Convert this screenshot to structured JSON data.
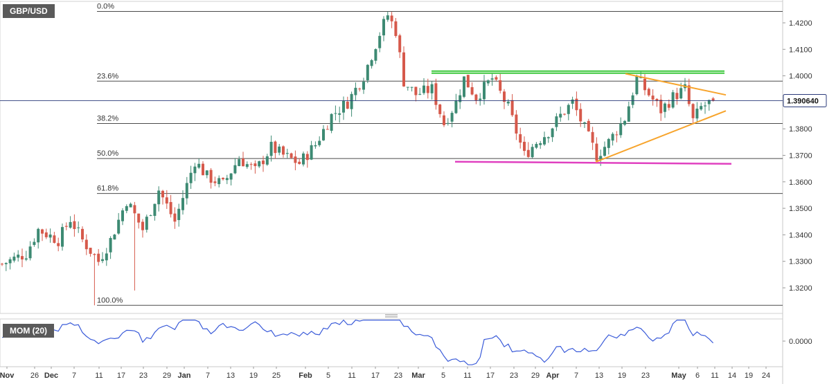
{
  "chart_data": [
    {
      "type": "candlestick",
      "symbol": "GBP/USD",
      "last_price": "1.390640",
      "ylim": [
        1.312,
        1.426
      ],
      "y_ticks": [
        "1.4200",
        "1.4100",
        "1.4000",
        "1.3900",
        "1.3800",
        "1.3700",
        "1.3600",
        "1.3500",
        "1.3400",
        "1.3300",
        "1.3200"
      ],
      "x_ticks": [
        "Nov",
        "26",
        "Dec",
        "7",
        "11",
        "17",
        "23",
        "29",
        "Jan",
        "7",
        "13",
        "19",
        "25",
        "Feb",
        "5",
        "11",
        "17",
        "23",
        "Mar",
        "5",
        "11",
        "17",
        "23",
        "29",
        "Apr",
        "7",
        "13",
        "19",
        "23",
        "May",
        "6",
        "11",
        "14",
        "19",
        "24"
      ],
      "fibonacci": [
        {
          "label": "0.0%",
          "value": 1.4243
        },
        {
          "label": "23.6%",
          "value": 1.398
        },
        {
          "label": "38.2%",
          "value": 1.382
        },
        {
          "label": "50.0%",
          "value": 1.3688
        },
        {
          "label": "61.8%",
          "value": 1.3556
        },
        {
          "label": "100.0%",
          "value": 1.3134
        }
      ],
      "colors": {
        "bull": "#3d8a73",
        "bear": "#d6594b",
        "resistance": "#3cc83c",
        "triangle": "#f7a42c",
        "support": "#e040c0",
        "momentum": "#3a5bd9"
      }
    },
    {
      "type": "line",
      "indicator": "MOM (20)",
      "ylim": [
        -0.009,
        0.008
      ],
      "y_ticks": [
        "0.0000"
      ]
    }
  ]
}
